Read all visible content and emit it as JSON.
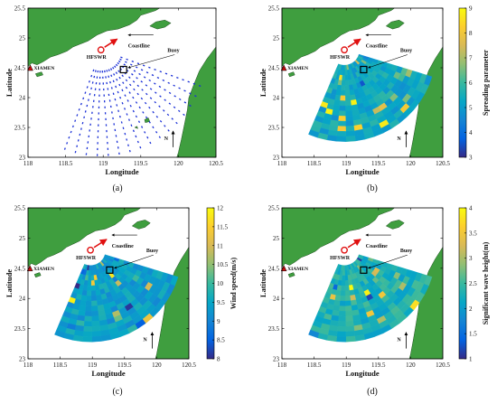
{
  "chart_data": [
    {
      "type": "scatter",
      "panel": "(a)",
      "xlabel": "Longitude",
      "ylabel": "Latitude",
      "xlim": [
        118,
        120.5
      ],
      "ylim": [
        23,
        25.5
      ],
      "xticks": [
        "118",
        "118.5",
        "119",
        "119.5",
        "120",
        "120.5"
      ],
      "yticks": [
        "23",
        "23.5",
        "24",
        "24.5",
        "25",
        "25.5"
      ],
      "annotations": [
        "Coastline",
        "Buoy",
        "HFSWR",
        "N"
      ],
      "station_label": "XIAMEN",
      "radar_site": {
        "lon": 118.97,
        "lat": 24.8
      },
      "buoy": {
        "lon": 119.27,
        "lat": 24.47
      },
      "beam_bearings_deg": [
        110,
        116,
        122,
        128,
        134,
        140,
        146,
        152,
        158,
        164,
        170,
        176,
        182,
        188,
        194,
        200
      ],
      "range_km": [
        8,
        16,
        24,
        32,
        40,
        48,
        56,
        64,
        72,
        80,
        88,
        96,
        104,
        112,
        120
      ]
    },
    {
      "type": "heatmap",
      "panel": "(b)",
      "xlabel": "Longitude",
      "ylabel": "Latitude",
      "xlim": [
        118,
        120.5
      ],
      "ylim": [
        23,
        25.5
      ],
      "xticks": [
        "118",
        "118.5",
        "119",
        "119.5",
        "120",
        "120.5"
      ],
      "yticks": [
        "23",
        "23.5",
        "24",
        "24.5",
        "25",
        "25.5"
      ],
      "annotations": [
        "Coastline",
        "Buoy",
        "HFSWR",
        "N"
      ],
      "station_label": "XIAMEN",
      "colorbar_label": "Spreading parameter",
      "colorbar_range": [
        3,
        9
      ],
      "colorbar_ticks": [
        "3",
        "4",
        "5",
        "6",
        "7",
        "8",
        "9"
      ],
      "base_value": 5.3
    },
    {
      "type": "heatmap",
      "panel": "(c)",
      "xlabel": "Longitude",
      "ylabel": "Latitude",
      "xlim": [
        118,
        120.5
      ],
      "ylim": [
        23,
        25.5
      ],
      "xticks": [
        "118",
        "118.5",
        "119",
        "119.5",
        "120",
        "120.5"
      ],
      "yticks": [
        "23",
        "23.5",
        "24",
        "24.5",
        "25",
        "25.5"
      ],
      "annotations": [
        "Coastline",
        "Buoy",
        "HFSWR",
        "N"
      ],
      "station_label": "XIAMEN",
      "colorbar_label": "Wind speed(m/s)",
      "colorbar_range": [
        8,
        12
      ],
      "colorbar_ticks": [
        "8",
        "8.5",
        "9",
        "9.5",
        "10",
        "10.5",
        "11",
        "11.5",
        "12"
      ],
      "base_value": 9.4
    },
    {
      "type": "heatmap",
      "panel": "(d)",
      "xlabel": "Longitude",
      "ylabel": "Latitude",
      "xlim": [
        118,
        120.5
      ],
      "ylim": [
        23,
        25.5
      ],
      "xticks": [
        "118",
        "118.5",
        "119",
        "119.5",
        "120",
        "120.5"
      ],
      "yticks": [
        "23",
        "23.5",
        "24",
        "24.5",
        "25",
        "25.5"
      ],
      "annotations": [
        "Coastline",
        "Buoy",
        "HFSWR",
        "N"
      ],
      "station_label": "XIAMEN",
      "colorbar_label": "Significant wave height(m)",
      "colorbar_range": [
        1,
        4
      ],
      "colorbar_ticks": [
        "1",
        "1.5",
        "2",
        "2.5",
        "3",
        "3.5",
        "4"
      ],
      "base_value": 2.3
    }
  ],
  "colors": {
    "land": "#3f9e3f",
    "land_edge": "#1f4d1f",
    "radar_dot": "#1a2fd6",
    "arrow_red": "#e01010",
    "buoy_box": "#000000",
    "xiamen_marker": "#d01010"
  }
}
